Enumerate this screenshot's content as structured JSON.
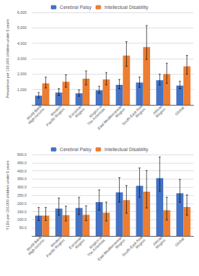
{
  "chart_data": [
    {
      "type": "bar",
      "ylabel": "Prevalence per 100,000 children under 5 years",
      "categories": [
        "World Bank\nHigh-income",
        "Western\nPacific Region",
        "European\nRegion",
        "Region of\nThe Americas",
        "East Mediterranean\nRegion",
        "South-East Asia\nRegion",
        "African\nRegion",
        "Global"
      ],
      "series": [
        {
          "name": "Cerebral Palsy",
          "color": "#4472C4",
          "values": [
            600,
            800,
            750,
            950,
            1300,
            1450,
            1600,
            1250
          ],
          "err_low": [
            150,
            200,
            180,
            200,
            250,
            300,
            300,
            200
          ],
          "err_high": [
            200,
            250,
            220,
            250,
            350,
            350,
            400,
            280
          ]
        },
        {
          "name": "Intellectual Disability",
          "color": "#ED7D31",
          "values": [
            1400,
            1500,
            1700,
            1650,
            3200,
            3750,
            2000,
            2500
          ],
          "err_low": [
            300,
            350,
            400,
            350,
            700,
            800,
            600,
            500
          ],
          "err_high": [
            400,
            450,
            500,
            450,
            900,
            1400,
            700,
            700
          ]
        }
      ],
      "ylim": [
        0,
        6000
      ],
      "yticks": [
        {
          "value": 0,
          "label": null
        },
        {
          "value": 1000,
          "label": "1,000"
        },
        {
          "value": 2000,
          "label": "2,000"
        },
        {
          "value": 3000,
          "label": "3,000"
        },
        {
          "value": 4000,
          "label": "4,000"
        },
        {
          "value": 5000,
          "label": "5,000"
        },
        {
          "value": 6000,
          "label": "6,000"
        }
      ],
      "grid": true,
      "legend": "top"
    },
    {
      "type": "bar",
      "ylabel": "YLDs per 100,000 children under 5 years",
      "categories": [
        "World Bank\nHigh-income",
        "Western\nPacific Region",
        "European\nRegion",
        "Region of\nThe Americas",
        "East Mediterranean\nRegion",
        "South-East Asia\nRegion",
        "African\nRegion",
        "Global"
      ],
      "series": [
        {
          "name": "Cerebral Palsy",
          "color": "#4472C4",
          "values": [
            125,
            168,
            172,
            208,
            268,
            308,
            355,
            262
          ],
          "err_low": [
            30,
            40,
            40,
            50,
            60,
            70,
            80,
            55
          ],
          "err_high": [
            50,
            65,
            65,
            75,
            90,
            110,
            130,
            85
          ]
        },
        {
          "name": "Intellectual Disability",
          "color": "#ED7D31",
          "values": [
            125,
            128,
            130,
            143,
            220,
            272,
            158,
            178
          ],
          "err_low": [
            30,
            35,
            35,
            50,
            80,
            100,
            60,
            50
          ],
          "err_high": [
            50,
            55,
            55,
            65,
            90,
            130,
            80,
            75
          ]
        }
      ],
      "ylim": [
        0,
        500
      ],
      "yticks": [
        {
          "value": 0,
          "label": null
        },
        {
          "value": 50,
          "label": "50.0"
        },
        {
          "value": 100,
          "label": "100.0"
        },
        {
          "value": 150,
          "label": "150.0"
        },
        {
          "value": 200,
          "label": "200.0"
        },
        {
          "value": 250,
          "label": "250.0"
        },
        {
          "value": 300,
          "label": "300.0"
        },
        {
          "value": 350,
          "label": "350.0"
        },
        {
          "value": 400,
          "label": "400.0"
        },
        {
          "value": 450,
          "label": "450.0"
        },
        {
          "value": 500,
          "label": "500.0"
        }
      ],
      "grid": true,
      "legend": "top"
    }
  ]
}
